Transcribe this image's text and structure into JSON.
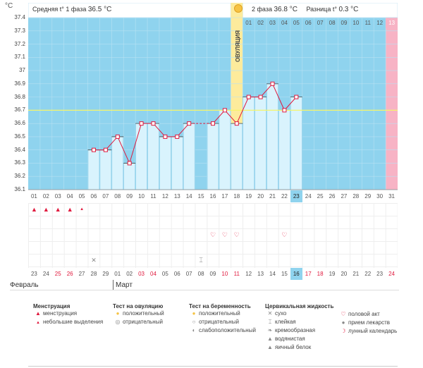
{
  "unit_label": "°C",
  "header": {
    "phase1_label": "Средняя t° 1 фаза",
    "phase1_value": "36.5 °C",
    "phase2_label": "2 фаза",
    "phase2_value": "36.8 °C",
    "diff_label": "Разница t°",
    "diff_value": "0.3 °C",
    "sun_icon": "sun-icon"
  },
  "ovulation_label": "ОВУЛЯЦИЯ",
  "colors": {
    "phase_bg": "#8fd3ee",
    "bar": "#d9f3fd",
    "bar_border": "#7fc8e6",
    "line": "#e0193d",
    "ovulation": "#fdeb9c",
    "pink": "#f7b3c5",
    "coverline": "#f5f56a"
  },
  "chart_data": {
    "type": "line",
    "ylim": [
      36.1,
      37.4
    ],
    "y_ticks": [
      "37.4",
      "37.3",
      "37.2",
      "37.1",
      "37",
      "36.9",
      "36.8",
      "36.7",
      "36.6",
      "36.5",
      "36.4",
      "36.3",
      "36.2",
      "36.1"
    ],
    "coverline": 36.7,
    "x": [
      "01",
      "02",
      "03",
      "04",
      "05",
      "06",
      "07",
      "08",
      "09",
      "10",
      "11",
      "12",
      "13",
      "14",
      "15",
      "16",
      "17",
      "18",
      "19",
      "20",
      "21",
      "22",
      "23",
      "24",
      "25",
      "26",
      "27",
      "28",
      "29",
      "30",
      "31"
    ],
    "values": [
      null,
      null,
      null,
      null,
      null,
      36.4,
      36.4,
      36.5,
      36.3,
      36.6,
      36.6,
      36.5,
      36.5,
      36.6,
      null,
      36.6,
      36.7,
      36.6,
      36.8,
      36.8,
      36.9,
      36.7,
      36.8,
      null,
      null,
      null,
      null,
      null,
      null,
      null,
      null
    ],
    "dashed_gap_days": [
      14,
      15,
      16
    ]
  },
  "top_numbers": [
    "",
    "2 фаза",
    "01",
    "02",
    "03",
    "04",
    "05",
    "06",
    "07",
    "08",
    "09",
    "10",
    "11",
    "12",
    "13"
  ],
  "cycle_days": [
    "01",
    "02",
    "03",
    "04",
    "05",
    "06",
    "07",
    "08",
    "09",
    "10",
    "11",
    "12",
    "13",
    "14",
    "15",
    "16",
    "17",
    "18",
    "19",
    "20",
    "21",
    "22",
    "23",
    "24",
    "25",
    "26",
    "27",
    "28",
    "29",
    "30",
    "31"
  ],
  "cycle_day_labels_top": [
    "01",
    "02",
    "03",
    "04",
    "05",
    "06",
    "07",
    "08",
    "09",
    "10",
    "11",
    "12",
    "13"
  ],
  "selected_cycle_day": "23",
  "calendar_dates": [
    "23",
    "24",
    "25",
    "26",
    "27",
    "28",
    "29",
    "01",
    "02",
    "03",
    "04",
    "05",
    "06",
    "07",
    "08",
    "09",
    "10",
    "11",
    "12",
    "13",
    "14",
    "15",
    "16",
    "17",
    "18",
    "19",
    "20",
    "21",
    "22",
    "23",
    "24"
  ],
  "calendar_red": [
    false,
    false,
    true,
    true,
    false,
    false,
    false,
    false,
    false,
    true,
    true,
    false,
    false,
    false,
    false,
    false,
    true,
    true,
    false,
    false,
    false,
    false,
    false,
    true,
    true,
    false,
    false,
    false,
    false,
    false,
    true
  ],
  "selected_calendar": "16",
  "months": {
    "feb": "Февраль",
    "mar": "Март"
  },
  "legend": {
    "menstruation": {
      "title": "Менструация",
      "items": [
        "менструация",
        "небольшие выделения"
      ]
    },
    "ovulation_test": {
      "title": "Тест на овуляцию",
      "items": [
        "положительный",
        "отрицательный"
      ]
    },
    "pregnancy_test": {
      "title": "Тест на беременность",
      "items": [
        "положительный",
        "отрицательный",
        "слабоположительный"
      ]
    },
    "cervical": {
      "title": "Цервикальная жидкость",
      "items": [
        "сухо",
        "клейкая",
        "кремообразная",
        "водянистая",
        "яичный белок"
      ]
    },
    "other": {
      "items": [
        "половой акт",
        "прием лекарств",
        "лунный календарь"
      ]
    }
  }
}
